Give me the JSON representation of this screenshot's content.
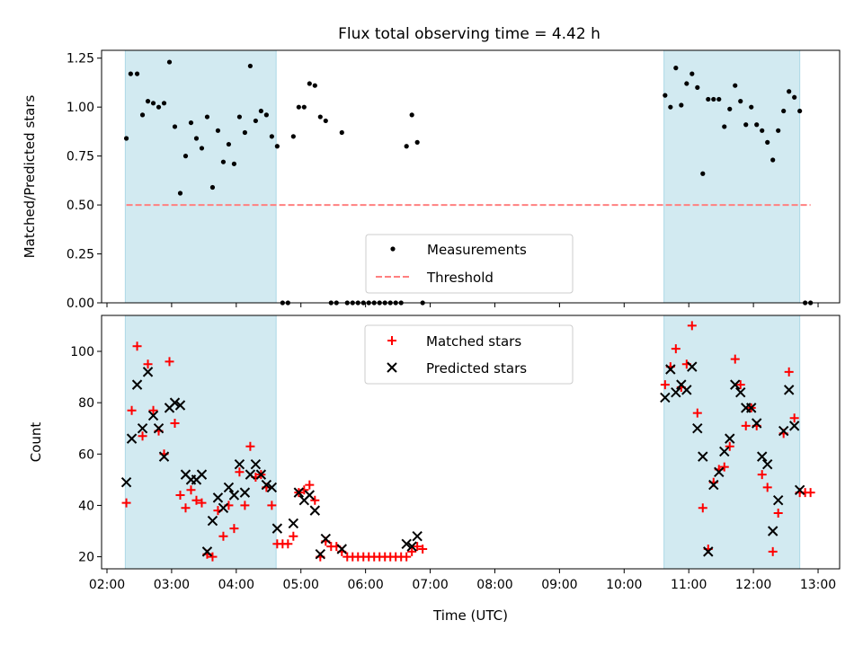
{
  "title": "Flux total observing time = 4.42 h",
  "chart_data": [
    {
      "type": "scatter",
      "ylabel": "Matched/Predicted stars",
      "ylim": [
        0,
        1.29
      ],
      "yticks": [
        0.0,
        0.25,
        0.5,
        0.75,
        1.0,
        1.25
      ],
      "ytick_labels": [
        "0.00",
        "0.25",
        "0.50",
        "0.75",
        "1.00",
        "1.25"
      ],
      "legend_placement": "lower-center",
      "shaded_intervals": [
        [
          "02:17",
          "04:37"
        ],
        [
          "10:37",
          "12:43"
        ]
      ],
      "shade_color": "#add8e6",
      "series": [
        {
          "name": "Measurements",
          "color": "#000000",
          "marker": "dot",
          "points": [
            [
              "02:18",
              0.84
            ],
            [
              "02:22",
              1.17
            ],
            [
              "02:28",
              1.17
            ],
            [
              "02:33",
              0.96
            ],
            [
              "02:38",
              1.03
            ],
            [
              "02:43",
              1.02
            ],
            [
              "02:48",
              1.0
            ],
            [
              "02:53",
              1.02
            ],
            [
              "02:58",
              1.23
            ],
            [
              "03:03",
              0.9
            ],
            [
              "03:08",
              0.56
            ],
            [
              "03:13",
              0.75
            ],
            [
              "03:18",
              0.92
            ],
            [
              "03:23",
              0.84
            ],
            [
              "03:28",
              0.79
            ],
            [
              "03:33",
              0.95
            ],
            [
              "03:38",
              0.59
            ],
            [
              "03:43",
              0.88
            ],
            [
              "03:48",
              0.72
            ],
            [
              "03:53",
              0.81
            ],
            [
              "03:58",
              0.71
            ],
            [
              "04:03",
              0.95
            ],
            [
              "04:08",
              0.87
            ],
            [
              "04:13",
              1.21
            ],
            [
              "04:18",
              0.93
            ],
            [
              "04:23",
              0.98
            ],
            [
              "04:28",
              0.96
            ],
            [
              "04:33",
              0.85
            ],
            [
              "04:38",
              0.8
            ],
            [
              "04:43",
              0.0
            ],
            [
              "04:48",
              0.0
            ],
            [
              "04:53",
              0.85
            ],
            [
              "04:58",
              1.0
            ],
            [
              "05:03",
              1.0
            ],
            [
              "05:08",
              1.12
            ],
            [
              "05:13",
              1.11
            ],
            [
              "05:18",
              0.95
            ],
            [
              "05:23",
              0.93
            ],
            [
              "05:28",
              0.0
            ],
            [
              "05:33",
              0.0
            ],
            [
              "05:38",
              0.87
            ],
            [
              "05:43",
              0.0
            ],
            [
              "05:48",
              0.0
            ],
            [
              "05:53",
              0.0
            ],
            [
              "05:58",
              0.0
            ],
            [
              "06:03",
              0.0
            ],
            [
              "06:08",
              0.0
            ],
            [
              "06:13",
              0.0
            ],
            [
              "06:18",
              0.0
            ],
            [
              "06:23",
              0.0
            ],
            [
              "06:28",
              0.0
            ],
            [
              "06:33",
              0.0
            ],
            [
              "06:38",
              0.8
            ],
            [
              "06:43",
              0.96
            ],
            [
              "06:48",
              0.82
            ],
            [
              "06:53",
              0.0
            ],
            [
              "10:38",
              1.06
            ],
            [
              "10:43",
              1.0
            ],
            [
              "10:48",
              1.2
            ],
            [
              "10:53",
              1.01
            ],
            [
              "10:58",
              1.12
            ],
            [
              "11:03",
              1.17
            ],
            [
              "11:08",
              1.1
            ],
            [
              "11:13",
              0.66
            ],
            [
              "11:18",
              1.04
            ],
            [
              "11:23",
              1.04
            ],
            [
              "11:28",
              1.04
            ],
            [
              "11:33",
              0.9
            ],
            [
              "11:38",
              0.99
            ],
            [
              "11:43",
              1.11
            ],
            [
              "11:48",
              1.03
            ],
            [
              "11:53",
              0.91
            ],
            [
              "11:58",
              1.0
            ],
            [
              "12:03",
              0.91
            ],
            [
              "12:08",
              0.88
            ],
            [
              "12:13",
              0.82
            ],
            [
              "12:18",
              0.73
            ],
            [
              "12:23",
              0.88
            ],
            [
              "12:28",
              0.98
            ],
            [
              "12:33",
              1.08
            ],
            [
              "12:38",
              1.05
            ],
            [
              "12:43",
              0.98
            ],
            [
              "12:48",
              0.0
            ],
            [
              "12:53",
              0.0
            ]
          ]
        },
        {
          "name": "Threshold",
          "color": "#ff8080",
          "style": "dashed",
          "points": [
            [
              "02:18",
              0.5
            ],
            [
              "12:53",
              0.5
            ]
          ]
        }
      ]
    },
    {
      "type": "scatter",
      "xlabel": "Time (UTC)",
      "ylabel": "Count",
      "ylim": [
        15.3,
        114
      ],
      "yticks": [
        20,
        40,
        60,
        80,
        100
      ],
      "ytick_labels": [
        "20",
        "40",
        "60",
        "80",
        "100"
      ],
      "xlim": [
        "01:55",
        "13:20"
      ],
      "xticks": [
        "02:00",
        "03:00",
        "04:00",
        "05:00",
        "06:00",
        "07:00",
        "08:00",
        "09:00",
        "10:00",
        "11:00",
        "12:00",
        "13:00"
      ],
      "xtick_labels": [
        "02:00",
        "03:00",
        "04:00",
        "05:00",
        "06:00",
        "07:00",
        "08:00",
        "09:00",
        "10:00",
        "11:00",
        "12:00",
        "13:00"
      ],
      "legend_placement": "top-center",
      "shaded_intervals": [
        [
          "02:17",
          "04:37"
        ],
        [
          "10:37",
          "12:43"
        ]
      ],
      "shade_color": "#add8e6",
      "series": [
        {
          "name": "Matched stars",
          "color": "#ff0000",
          "marker": "plus",
          "points": [
            [
              "02:18",
              41
            ],
            [
              "02:23",
              77
            ],
            [
              "02:28",
              102
            ],
            [
              "02:33",
              67
            ],
            [
              "02:38",
              95
            ],
            [
              "02:43",
              77
            ],
            [
              "02:48",
              69
            ],
            [
              "02:53",
              60
            ],
            [
              "02:58",
              96
            ],
            [
              "03:03",
              72
            ],
            [
              "03:08",
              44
            ],
            [
              "03:13",
              39
            ],
            [
              "03:18",
              46
            ],
            [
              "03:23",
              42
            ],
            [
              "03:28",
              41
            ],
            [
              "03:33",
              21
            ],
            [
              "03:38",
              20
            ],
            [
              "03:43",
              38
            ],
            [
              "03:48",
              28
            ],
            [
              "03:53",
              40
            ],
            [
              "03:58",
              31
            ],
            [
              "04:03",
              53
            ],
            [
              "04:08",
              40
            ],
            [
              "04:13",
              63
            ],
            [
              "04:18",
              51
            ],
            [
              "04:23",
              52
            ],
            [
              "04:28",
              47
            ],
            [
              "04:33",
              40
            ],
            [
              "04:38",
              25
            ],
            [
              "04:43",
              25
            ],
            [
              "04:48",
              25
            ],
            [
              "04:53",
              28
            ],
            [
              "04:58",
              45
            ],
            [
              "05:03",
              46
            ],
            [
              "05:08",
              48
            ],
            [
              "05:13",
              42
            ],
            [
              "05:18",
              20
            ],
            [
              "05:23",
              26
            ],
            [
              "05:28",
              24
            ],
            [
              "05:33",
              24
            ],
            [
              "05:38",
              22
            ],
            [
              "05:43",
              20
            ],
            [
              "05:48",
              20
            ],
            [
              "05:53",
              20
            ],
            [
              "05:58",
              20
            ],
            [
              "06:03",
              20
            ],
            [
              "06:08",
              20
            ],
            [
              "06:13",
              20
            ],
            [
              "06:18",
              20
            ],
            [
              "06:23",
              20
            ],
            [
              "06:28",
              20
            ],
            [
              "06:33",
              20
            ],
            [
              "06:38",
              20
            ],
            [
              "06:43",
              22
            ],
            [
              "06:48",
              24
            ],
            [
              "06:53",
              23
            ],
            [
              "10:38",
              87
            ],
            [
              "10:43",
              94
            ],
            [
              "10:48",
              101
            ],
            [
              "10:53",
              86
            ],
            [
              "10:58",
              95
            ],
            [
              "11:03",
              110
            ],
            [
              "11:08",
              76
            ],
            [
              "11:13",
              39
            ],
            [
              "11:18",
              23
            ],
            [
              "11:23",
              49
            ],
            [
              "11:28",
              54
            ],
            [
              "11:33",
              55
            ],
            [
              "11:38",
              63
            ],
            [
              "11:43",
              97
            ],
            [
              "11:48",
              87
            ],
            [
              "11:53",
              71
            ],
            [
              "11:58",
              78
            ],
            [
              "12:03",
              71
            ],
            [
              "12:08",
              52
            ],
            [
              "12:13",
              47
            ],
            [
              "12:18",
              22
            ],
            [
              "12:23",
              37
            ],
            [
              "12:28",
              68
            ],
            [
              "12:33",
              92
            ],
            [
              "12:38",
              74
            ],
            [
              "12:43",
              45
            ],
            [
              "12:48",
              45
            ],
            [
              "12:53",
              45
            ]
          ]
        },
        {
          "name": "Predicted stars",
          "color": "#000000",
          "marker": "x",
          "points": [
            [
              "02:18",
              49
            ],
            [
              "02:23",
              66
            ],
            [
              "02:28",
              87
            ],
            [
              "02:33",
              70
            ],
            [
              "02:38",
              92
            ],
            [
              "02:43",
              75
            ],
            [
              "02:48",
              70
            ],
            [
              "02:53",
              59
            ],
            [
              "02:58",
              78
            ],
            [
              "03:03",
              80
            ],
            [
              "03:08",
              79
            ],
            [
              "03:13",
              52
            ],
            [
              "03:18",
              50
            ],
            [
              "03:23",
              50
            ],
            [
              "03:28",
              52
            ],
            [
              "03:33",
              22
            ],
            [
              "03:38",
              34
            ],
            [
              "03:43",
              43
            ],
            [
              "03:48",
              39
            ],
            [
              "03:53",
              47
            ],
            [
              "03:58",
              44
            ],
            [
              "04:03",
              56
            ],
            [
              "04:08",
              45
            ],
            [
              "04:13",
              52
            ],
            [
              "04:18",
              56
            ],
            [
              "04:23",
              52
            ],
            [
              "04:28",
              48
            ],
            [
              "04:33",
              47
            ],
            [
              "04:38",
              31
            ],
            [
              "04:53",
              33
            ],
            [
              "04:58",
              45
            ],
            [
              "05:03",
              42
            ],
            [
              "05:08",
              44
            ],
            [
              "05:13",
              38
            ],
            [
              "05:18",
              21
            ],
            [
              "05:23",
              27
            ],
            [
              "05:38",
              23
            ],
            [
              "06:38",
              25
            ],
            [
              "06:43",
              24
            ],
            [
              "06:48",
              28
            ],
            [
              "10:38",
              82
            ],
            [
              "10:43",
              93
            ],
            [
              "10:48",
              84
            ],
            [
              "10:53",
              87
            ],
            [
              "10:58",
              85
            ],
            [
              "11:03",
              94
            ],
            [
              "11:08",
              70
            ],
            [
              "11:13",
              59
            ],
            [
              "11:18",
              22
            ],
            [
              "11:23",
              48
            ],
            [
              "11:28",
              53
            ],
            [
              "11:33",
              61
            ],
            [
              "11:38",
              66
            ],
            [
              "11:43",
              87
            ],
            [
              "11:48",
              84
            ],
            [
              "11:53",
              78
            ],
            [
              "11:58",
              78
            ],
            [
              "12:03",
              72
            ],
            [
              "12:08",
              59
            ],
            [
              "12:13",
              56
            ],
            [
              "12:18",
              30
            ],
            [
              "12:23",
              42
            ],
            [
              "12:28",
              69
            ],
            [
              "12:33",
              85
            ],
            [
              "12:38",
              71
            ],
            [
              "12:43",
              46
            ]
          ]
        }
      ]
    }
  ]
}
